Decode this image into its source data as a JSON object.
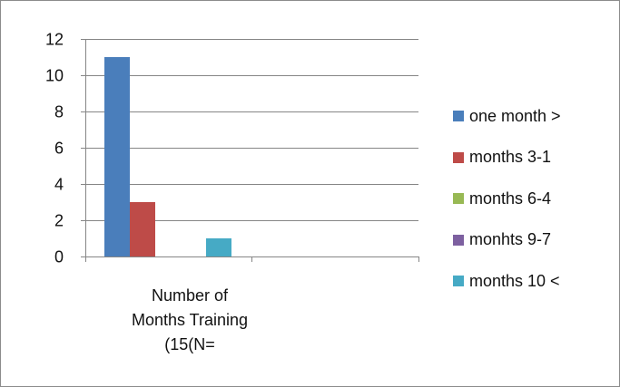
{
  "chart_data": {
    "type": "bar",
    "categories": [
      "Number of Months Training (15(N="
    ],
    "category_label_lines": [
      "Number of",
      "Months Training",
      "(15(N="
    ],
    "series": [
      {
        "name": "one month >",
        "color": "#4a7ebb",
        "values": [
          11
        ]
      },
      {
        "name": "months 3-1",
        "color": "#be4b48",
        "values": [
          3
        ]
      },
      {
        "name": "months 6-4",
        "color": "#98b954",
        "values": [
          0
        ]
      },
      {
        "name": "monhts 9-7",
        "color": "#7d60a0",
        "values": [
          0
        ]
      },
      {
        "name": "months 10 <",
        "color": "#46aac5",
        "values": [
          1
        ]
      }
    ],
    "yticks": [
      0,
      2,
      4,
      6,
      8,
      10,
      12
    ],
    "ylim": [
      0,
      12
    ],
    "grid": true,
    "legend_position": "right",
    "title": "",
    "xlabel": "",
    "ylabel": ""
  }
}
